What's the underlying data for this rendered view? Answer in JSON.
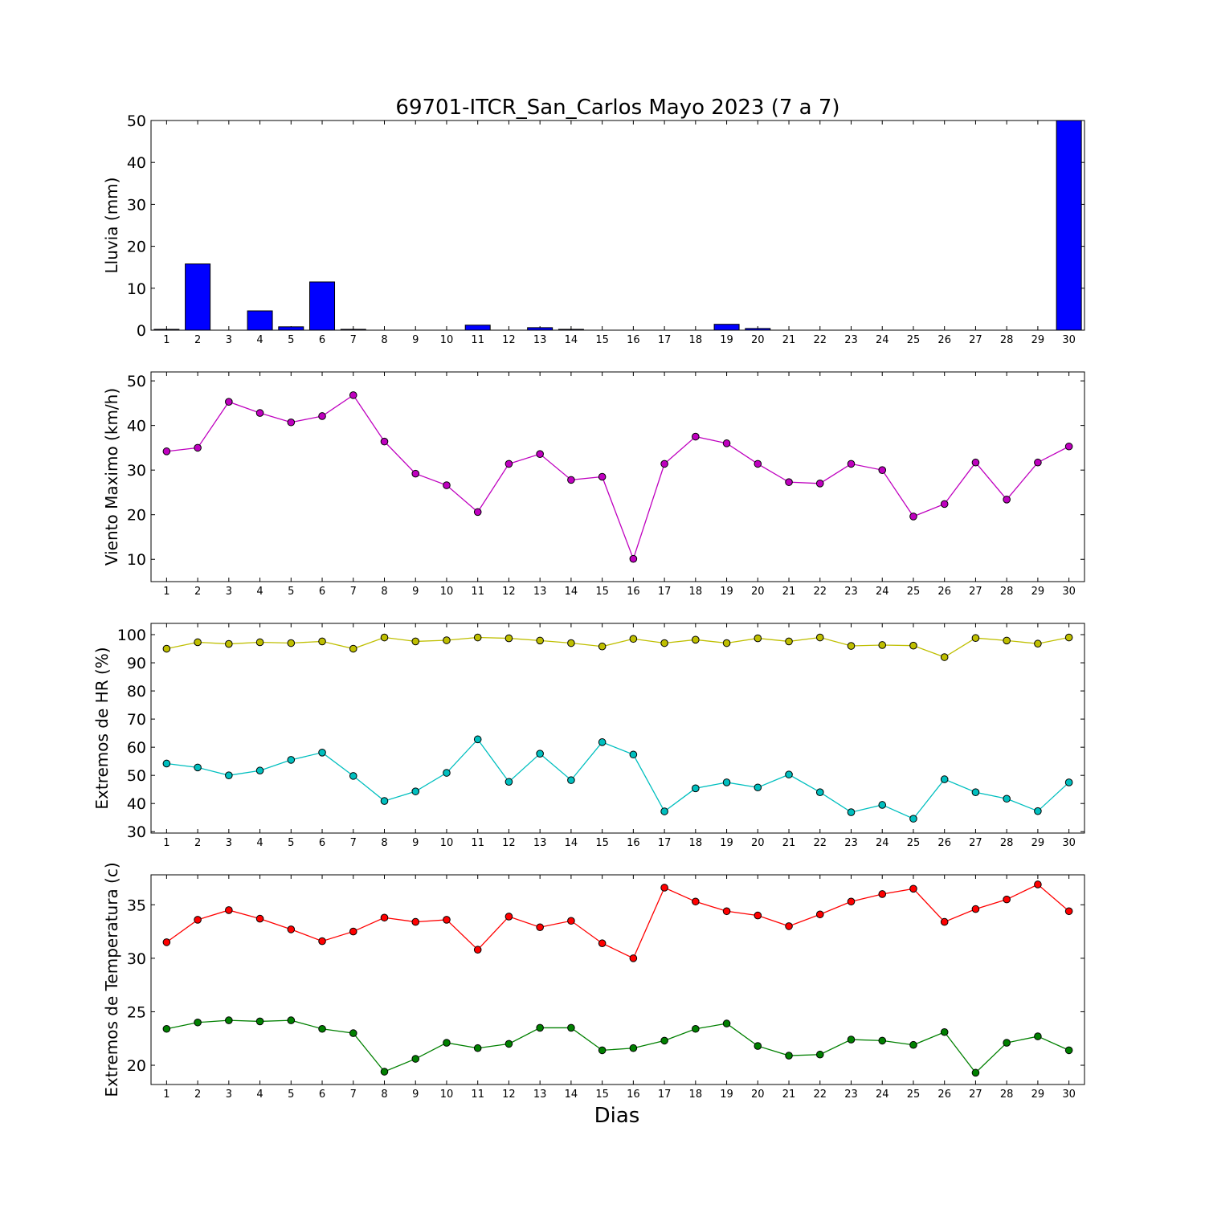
{
  "title": "69701-ITCR_San_Carlos Mayo 2023  (7 a 7)",
  "xlabel": "Dias",
  "colors": {
    "rain": "#0000ff",
    "wind": "#bf00bf",
    "hr_max": "#bfbf00",
    "hr_min": "#00bfbf",
    "temp_max": "#ff0000",
    "temp_min": "#008000"
  },
  "chart_data": [
    {
      "type": "bar",
      "ylabel": "Lluvia (mm)",
      "ylim": [
        0,
        50
      ],
      "yticks": [
        0,
        10,
        20,
        30,
        40,
        50
      ],
      "xlim": [
        0.5,
        30.5
      ],
      "x": [
        1,
        2,
        3,
        4,
        5,
        6,
        7,
        8,
        9,
        10,
        11,
        12,
        13,
        14,
        15,
        16,
        17,
        18,
        19,
        20,
        21,
        22,
        23,
        24,
        25,
        26,
        27,
        28,
        29,
        30
      ],
      "series": [
        {
          "color": "#0000ff",
          "values": [
            0.2,
            15.8,
            0,
            4.6,
            0.8,
            11.5,
            0.2,
            0,
            0,
            0,
            1.2,
            0,
            0.6,
            0.2,
            0,
            0,
            0,
            0,
            1.4,
            0.4,
            0,
            0,
            0,
            0,
            0,
            0,
            0,
            0,
            0,
            50
          ]
        }
      ]
    },
    {
      "type": "line",
      "ylabel": "Viento Maximo (km/h)",
      "ylim": [
        5,
        52
      ],
      "yticks": [
        10,
        20,
        30,
        40,
        50
      ],
      "xlim": [
        0.5,
        30.5
      ],
      "x": [
        1,
        2,
        3,
        4,
        5,
        6,
        7,
        8,
        9,
        10,
        11,
        12,
        13,
        14,
        15,
        16,
        17,
        18,
        19,
        20,
        21,
        22,
        23,
        24,
        25,
        26,
        27,
        28,
        29,
        30
      ],
      "series": [
        {
          "color": "#bf00bf",
          "values": [
            34.2,
            35,
            45.3,
            42.8,
            40.7,
            42.1,
            46.8,
            36.4,
            29.2,
            26.6,
            20.6,
            31.4,
            33.6,
            27.8,
            28.5,
            10.1,
            31.4,
            37.5,
            36,
            31.4,
            27.3,
            27,
            31.4,
            30,
            19.6,
            22.4,
            31.7,
            23.4,
            31.7,
            35.3
          ]
        }
      ]
    },
    {
      "type": "line",
      "ylabel": "Extremos de HR (%)",
      "ylim": [
        29.5,
        104
      ],
      "yticks": [
        30,
        40,
        50,
        60,
        70,
        80,
        90,
        100
      ],
      "xlim": [
        0.5,
        30.5
      ],
      "x": [
        1,
        2,
        3,
        4,
        5,
        6,
        7,
        8,
        9,
        10,
        11,
        12,
        13,
        14,
        15,
        16,
        17,
        18,
        19,
        20,
        21,
        22,
        23,
        24,
        25,
        26,
        27,
        28,
        29,
        30
      ],
      "series": [
        {
          "color": "#bfbf00",
          "values": [
            95,
            97.3,
            96.7,
            97.3,
            97,
            97.6,
            95,
            99,
            97.6,
            98,
            99,
            98.7,
            97.9,
            97,
            95.8,
            98.5,
            97,
            98.2,
            97,
            98.7,
            97.6,
            99,
            96,
            96.3,
            96.1,
            92,
            98.8,
            97.9,
            96.8,
            99
          ]
        },
        {
          "color": "#00bfbf",
          "values": [
            54.2,
            52.8,
            50,
            51.7,
            55.5,
            58.1,
            49.8,
            40.9,
            44.3,
            50.9,
            62.8,
            47.7,
            57.7,
            48.3,
            61.8,
            57.4,
            37.2,
            45.4,
            47.5,
            45.7,
            50.3,
            44,
            36.9,
            39.5,
            34.6,
            48.6,
            44,
            41.7,
            37.3,
            47.5
          ]
        }
      ]
    },
    {
      "type": "line",
      "ylabel": "Extremos de Temperatura (c)",
      "ylim": [
        18.2,
        37.8
      ],
      "yticks": [
        20,
        25,
        30,
        35
      ],
      "xlim": [
        0.5,
        30.5
      ],
      "x": [
        1,
        2,
        3,
        4,
        5,
        6,
        7,
        8,
        9,
        10,
        11,
        12,
        13,
        14,
        15,
        16,
        17,
        18,
        19,
        20,
        21,
        22,
        23,
        24,
        25,
        26,
        27,
        28,
        29,
        30
      ],
      "series": [
        {
          "color": "#ff0000",
          "values": [
            31.5,
            33.6,
            34.5,
            33.7,
            32.7,
            31.6,
            32.5,
            33.8,
            33.4,
            33.6,
            30.8,
            33.9,
            32.9,
            33.5,
            31.4,
            30,
            36.6,
            35.3,
            34.4,
            34,
            33,
            34.1,
            35.3,
            36,
            36.5,
            33.4,
            34.6,
            35.5,
            36.9,
            34.4
          ]
        },
        {
          "color": "#008000",
          "values": [
            23.4,
            24,
            24.2,
            24.1,
            24.2,
            23.4,
            23,
            19.4,
            20.6,
            22.1,
            21.6,
            22,
            23.5,
            23.5,
            21.4,
            21.6,
            22.3,
            23.4,
            23.9,
            21.8,
            20.9,
            21,
            22.4,
            22.3,
            21.9,
            23.1,
            19.3,
            22.1,
            22.7,
            21.4
          ]
        }
      ]
    }
  ]
}
